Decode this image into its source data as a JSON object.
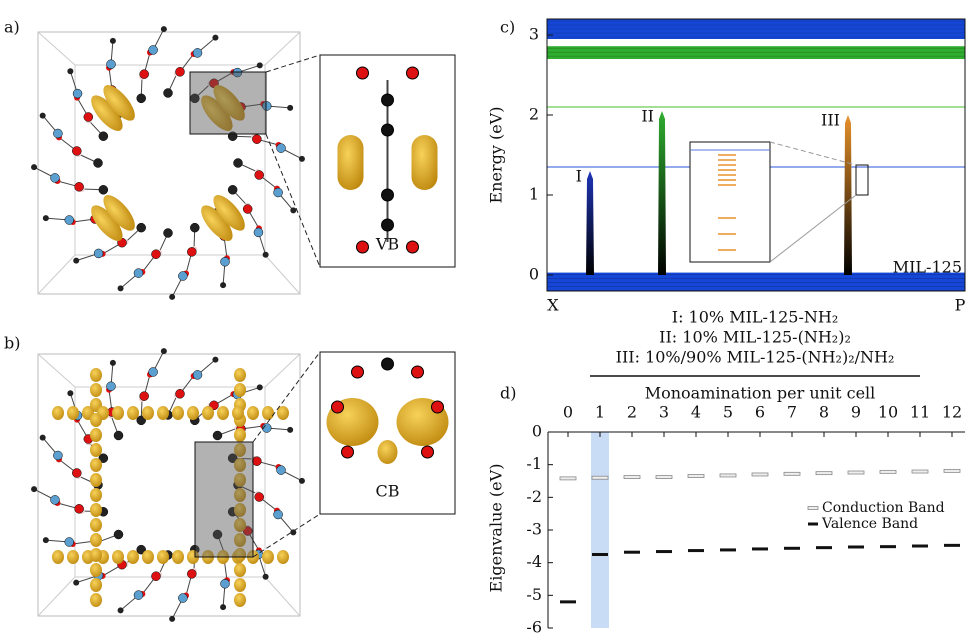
{
  "figure": {
    "panel_a": {
      "label": "a)",
      "inset_label": "VB"
    },
    "panel_b": {
      "label": "b)",
      "inset_label": "CB"
    }
  },
  "chart_data": [
    {
      "type": "bands",
      "panel": "c)",
      "y_label": "Energy (eV)",
      "ylim": [
        -0.2,
        3.2
      ],
      "yticks": [
        0,
        1,
        2,
        3
      ],
      "x_labels": [
        "X",
        "P"
      ],
      "bands": [
        {
          "from": -0.2,
          "to": 0.03,
          "color": "#1546d6"
        },
        {
          "from": 2.7,
          "to": 2.86,
          "color": "#2fae2f"
        },
        {
          "from": 2.95,
          "to": 3.2,
          "color": "#1546d6"
        }
      ],
      "levels": [
        {
          "value": 1.35,
          "color": "#5577e0"
        },
        {
          "value": 2.1,
          "color": "#6ccc55"
        }
      ],
      "peaks": [
        {
          "name": "I",
          "value": 1.3,
          "color": "#1f35b8"
        },
        {
          "name": "II",
          "value": 2.05,
          "color": "#2fae2f"
        },
        {
          "name": "III",
          "value": 2.0,
          "color": "#e8922a"
        }
      ],
      "annotation": "MIL-125",
      "legend": [
        {
          "text": "I: 10% MIL-125-NH₂",
          "color": "#1f35d8"
        },
        {
          "text": "II: 10% MIL-125-(NH₂)₂",
          "color": "#2fae2f"
        },
        {
          "text": "III: 10%/90% MIL-125-(NH₂)₂/NH₂",
          "color": "#e8922a"
        }
      ]
    },
    {
      "type": "dash",
      "panel": "d)",
      "title": "Monoamination per unit cell",
      "y_label": "Eigenvalue (eV)",
      "categories": [
        "0",
        "1",
        "2",
        "3",
        "4",
        "5",
        "6",
        "7",
        "8",
        "9",
        "10",
        "11",
        "12"
      ],
      "ylim": [
        -6,
        0
      ],
      "yticks": [
        0,
        -1,
        -2,
        -3,
        -4,
        -5,
        -6
      ],
      "highlight": "1",
      "series": [
        {
          "name": "Conduction Band",
          "color": "#888888",
          "values": [
            -1.42,
            -1.4,
            -1.38,
            -1.38,
            -1.35,
            -1.33,
            -1.3,
            -1.28,
            -1.26,
            -1.24,
            -1.22,
            -1.21,
            -1.19
          ]
        },
        {
          "name": "Valence Band",
          "color": "#111111",
          "values": [
            -5.2,
            -3.75,
            -3.68,
            -3.66,
            -3.63,
            -3.61,
            -3.58,
            -3.56,
            -3.54,
            -3.52,
            -3.51,
            -3.49,
            -3.47
          ]
        }
      ]
    }
  ]
}
